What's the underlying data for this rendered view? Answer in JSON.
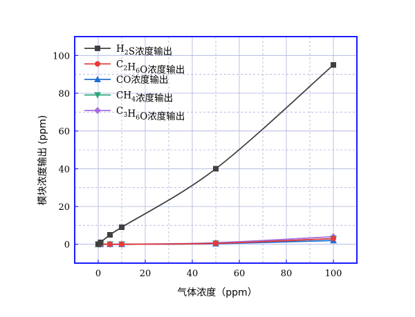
{
  "chart_data": {
    "type": "line",
    "xlabel": "气体浓度（ppm）",
    "ylabel": "模块浓度输出 (ppm)",
    "xlim": [
      -10,
      110
    ],
    "ylim": [
      -10,
      110
    ],
    "xticks": [
      0,
      20,
      40,
      60,
      80,
      100
    ],
    "yticks": [
      0,
      20,
      40,
      60,
      80,
      100
    ],
    "grid": true,
    "legend_position": "top-left",
    "frame_color": "#1a1aff",
    "grid_color": "#aab0dd",
    "series": [
      {
        "name": "H₂S浓度输出",
        "legend": [
          {
            "t": "H"
          },
          {
            "t": "2",
            "sub": true
          },
          {
            "t": "S浓度输出"
          }
        ],
        "color": "#404040",
        "marker": "square",
        "x": [
          0,
          1,
          5,
          10,
          50,
          100
        ],
        "y": [
          0,
          1,
          5,
          9,
          40,
          95
        ]
      },
      {
        "name": "C₂H₆O浓度输出",
        "legend": [
          {
            "t": "C"
          },
          {
            "t": "2",
            "sub": true
          },
          {
            "t": "H"
          },
          {
            "t": "6",
            "sub": true
          },
          {
            "t": "O浓度输出"
          }
        ],
        "color": "#e83a3a",
        "marker": "circle",
        "x": [
          0,
          1,
          5,
          10,
          50,
          100
        ],
        "y": [
          0,
          0,
          0,
          0,
          0.5,
          3
        ]
      },
      {
        "name": "CO浓度输出",
        "legend": [
          {
            "t": "CO浓度输出"
          }
        ],
        "color": "#1f6fd1",
        "marker": "triangle-up",
        "x": [
          0,
          1,
          5,
          10,
          50,
          100
        ],
        "y": [
          0,
          0,
          0,
          0,
          0.3,
          2
        ]
      },
      {
        "name": "CH₄浓度输出",
        "legend": [
          {
            "t": "CH"
          },
          {
            "t": "4",
            "sub": true
          },
          {
            "t": "浓度输出"
          }
        ],
        "color": "#2aa87a",
        "marker": "triangle-down",
        "x": [
          0,
          1,
          5,
          10,
          50,
          100
        ],
        "y": [
          0,
          0,
          0,
          0,
          0.5,
          3
        ]
      },
      {
        "name": "C₃H₆O浓度输出",
        "legend": [
          {
            "t": "C"
          },
          {
            "t": "3",
            "sub": true
          },
          {
            "t": "H"
          },
          {
            "t": "6",
            "sub": true
          },
          {
            "t": "O浓度输出"
          }
        ],
        "color": "#a66ee0",
        "marker": "diamond",
        "x": [
          0,
          1,
          5,
          10,
          50,
          100
        ],
        "y": [
          0,
          0,
          0,
          0,
          0.8,
          4
        ]
      }
    ]
  }
}
